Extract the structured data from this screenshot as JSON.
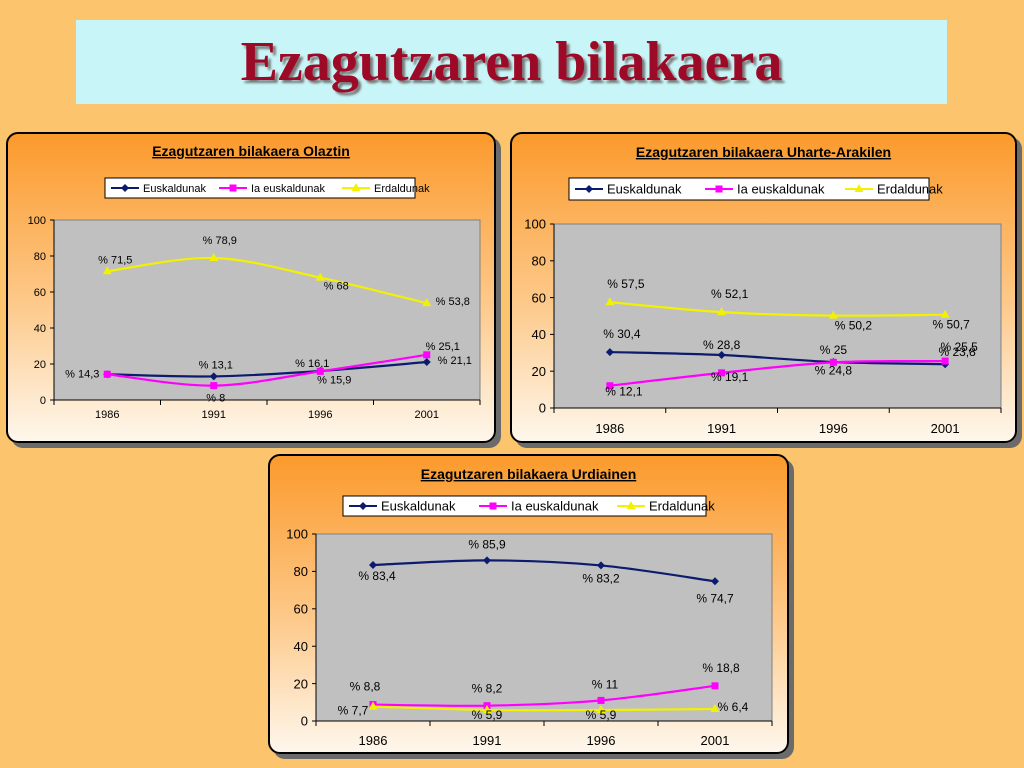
{
  "page": {
    "title": "Ezagutzaren bilakaera"
  },
  "legend_labels": [
    "Euskaldunak",
    "Ia euskaldunak",
    "Erdaldunak"
  ],
  "colors": {
    "euskaldunak": "#0d1b6e",
    "ia_euskaldunak": "#ff00ff",
    "erdaldunak": "#f2f200",
    "plot_bg": "#c0c0c0"
  },
  "chart_data": [
    {
      "type": "line",
      "title": "Ezagutzaren bilakaera Olaztin",
      "categories": [
        "1986",
        "1991",
        "1996",
        "2001"
      ],
      "ylim": [
        0,
        100
      ],
      "yticks": [
        "0",
        "20",
        "40",
        "60",
        "80",
        "100"
      ],
      "grid": false,
      "legend": "top",
      "series": [
        {
          "name": "Euskaldunak",
          "values": [
            14.3,
            13.1,
            16.1,
            21.1
          ],
          "labels": [
            "% 14,3",
            "% 13,1",
            "% 16,1",
            "% 21,1"
          ]
        },
        {
          "name": "Ia euskaldunak",
          "values": [
            14.3,
            8,
            15.9,
            25.1
          ],
          "labels": [
            "",
            "% 8",
            "% 15,9",
            "% 25,1"
          ]
        },
        {
          "name": "Erdaldunak",
          "values": [
            71.5,
            78.9,
            68,
            53.8
          ],
          "labels": [
            "% 71,5",
            "% 78,9",
            "% 68",
            "% 53,8"
          ]
        }
      ]
    },
    {
      "type": "line",
      "title": "Ezagutzaren bilakaera Uharte-Arakilen",
      "categories": [
        "1986",
        "1991",
        "1996",
        "2001"
      ],
      "ylim": [
        0,
        100
      ],
      "yticks": [
        "0",
        "20",
        "40",
        "60",
        "80",
        "100"
      ],
      "grid": false,
      "legend": "top",
      "series": [
        {
          "name": "Euskaldunak",
          "values": [
            30.4,
            28.8,
            25,
            23.8
          ],
          "labels": [
            "% 30,4",
            "% 28,8",
            "% 25",
            "% 23,8"
          ]
        },
        {
          "name": "Ia euskaldunak",
          "values": [
            12.1,
            19.1,
            24.8,
            25.5
          ],
          "labels": [
            "% 12,1",
            "% 19,1",
            "% 24,8",
            "% 25,5"
          ]
        },
        {
          "name": "Erdaldunak",
          "values": [
            57.5,
            52.1,
            50.2,
            50.7
          ],
          "labels": [
            "% 57,5",
            "% 52,1",
            "% 50,2",
            "% 50,7"
          ]
        }
      ]
    },
    {
      "type": "line",
      "title": "Ezagutzaren bilakaera Urdiainen",
      "categories": [
        "1986",
        "1991",
        "1996",
        "2001"
      ],
      "ylim": [
        0,
        100
      ],
      "yticks": [
        "0",
        "20",
        "40",
        "60",
        "80",
        "100"
      ],
      "grid": false,
      "legend": "top",
      "series": [
        {
          "name": "Euskaldunak",
          "values": [
            83.4,
            85.9,
            83.2,
            74.7
          ],
          "labels": [
            "% 83,4",
            "% 85,9",
            "% 83,2",
            "% 74,7"
          ]
        },
        {
          "name": "Ia euskaldunak",
          "values": [
            8.8,
            8.2,
            11,
            18.8
          ],
          "labels": [
            "% 8,8",
            "% 8,2",
            "% 11",
            "% 18,8"
          ]
        },
        {
          "name": "Erdaldunak",
          "values": [
            7.7,
            5.9,
            5.9,
            6.4
          ],
          "labels": [
            "% 7,7",
            "% 5,9",
            "% 5,9",
            "% 6,4"
          ]
        }
      ]
    }
  ]
}
